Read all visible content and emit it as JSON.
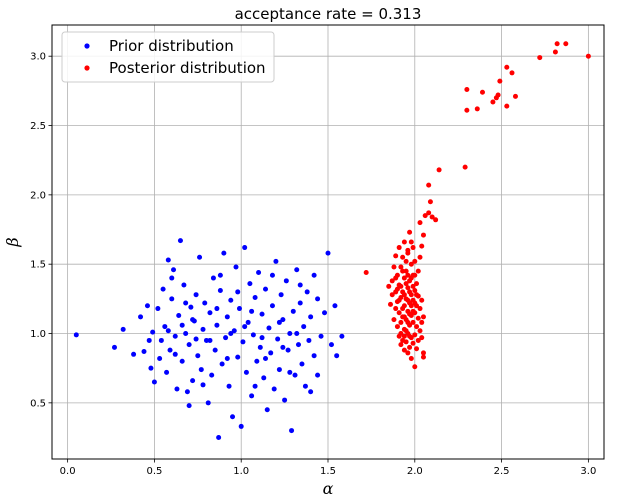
{
  "chart_data": {
    "type": "scatter",
    "title": "acceptance rate = 0.313",
    "xlabel": "α",
    "ylabel": "β",
    "xlim": [
      -0.09,
      3.09
    ],
    "ylim": [
      0.095,
      3.225
    ],
    "x_ticks": [
      0.0,
      0.5,
      1.0,
      1.5,
      2.0,
      2.5,
      3.0
    ],
    "y_ticks": [
      0.5,
      1.0,
      1.5,
      2.0,
      2.5,
      3.0
    ],
    "grid": true,
    "legend_position": "top-left",
    "series": [
      {
        "name": "Prior distribution",
        "color": "#0000ff",
        "marker": "dot",
        "points": [
          [
            0.05,
            0.99
          ],
          [
            0.27,
            0.9
          ],
          [
            0.32,
            1.03
          ],
          [
            0.38,
            0.85
          ],
          [
            0.42,
            1.12
          ],
          [
            0.44,
            0.87
          ],
          [
            0.46,
            1.2
          ],
          [
            0.47,
            0.95
          ],
          [
            0.49,
            1.01
          ],
          [
            0.5,
            0.65
          ],
          [
            0.52,
            1.18
          ],
          [
            0.53,
            0.82
          ],
          [
            0.55,
            1.32
          ],
          [
            0.56,
            1.05
          ],
          [
            0.57,
            0.72
          ],
          [
            0.58,
            1.53
          ],
          [
            0.59,
            0.88
          ],
          [
            0.6,
            1.25
          ],
          [
            0.61,
            1.46
          ],
          [
            0.62,
            0.98
          ],
          [
            0.63,
            0.6
          ],
          [
            0.64,
            1.13
          ],
          [
            0.65,
            1.67
          ],
          [
            0.66,
            0.8
          ],
          [
            0.67,
            1.35
          ],
          [
            0.68,
            1.0
          ],
          [
            0.69,
            0.58
          ],
          [
            0.7,
            0.92
          ],
          [
            0.71,
            1.19
          ],
          [
            0.72,
            0.66
          ],
          [
            0.73,
            1.09
          ],
          [
            0.74,
            1.28
          ],
          [
            0.75,
            0.84
          ],
          [
            0.76,
            1.55
          ],
          [
            0.77,
            0.74
          ],
          [
            0.78,
            1.03
          ],
          [
            0.79,
            1.22
          ],
          [
            0.8,
            0.95
          ],
          [
            0.81,
            0.5
          ],
          [
            0.82,
            1.15
          ],
          [
            0.83,
            0.7
          ],
          [
            0.84,
            1.4
          ],
          [
            0.85,
            0.88
          ],
          [
            0.86,
            1.06
          ],
          [
            0.87,
            0.25
          ],
          [
            0.88,
            1.31
          ],
          [
            0.89,
            0.78
          ],
          [
            0.9,
            1.58
          ],
          [
            0.91,
            0.97
          ],
          [
            0.92,
            1.12
          ],
          [
            0.93,
            0.62
          ],
          [
            0.94,
            1.24
          ],
          [
            0.95,
            0.4
          ],
          [
            0.96,
            1.02
          ],
          [
            0.97,
            1.48
          ],
          [
            0.98,
            0.83
          ],
          [
            0.99,
            1.18
          ],
          [
            1.0,
            0.33
          ],
          [
            1.01,
            0.94
          ],
          [
            1.02,
            1.62
          ],
          [
            1.03,
            0.72
          ],
          [
            1.04,
            1.08
          ],
          [
            1.05,
            1.36
          ],
          [
            1.06,
            0.55
          ],
          [
            1.07,
            0.99
          ],
          [
            1.08,
            1.26
          ],
          [
            1.09,
            0.8
          ],
          [
            1.1,
            1.44
          ],
          [
            1.11,
            0.9
          ],
          [
            1.12,
            1.14
          ],
          [
            1.13,
            0.68
          ],
          [
            1.14,
            1.32
          ],
          [
            1.15,
            0.45
          ],
          [
            1.16,
            1.04
          ],
          [
            1.17,
            0.86
          ],
          [
            1.18,
            1.2
          ],
          [
            1.19,
            0.6
          ],
          [
            1.2,
            1.52
          ],
          [
            1.21,
            0.96
          ],
          [
            1.22,
            0.74
          ],
          [
            1.23,
            1.28
          ],
          [
            1.24,
            1.1
          ],
          [
            1.25,
            0.52
          ],
          [
            1.26,
            1.38
          ],
          [
            1.27,
            0.88
          ],
          [
            1.28,
            1.0
          ],
          [
            1.29,
            0.3
          ],
          [
            1.3,
            1.16
          ],
          [
            1.31,
            0.7
          ],
          [
            1.32,
            1.46
          ],
          [
            1.33,
            0.92
          ],
          [
            1.34,
            1.22
          ],
          [
            1.35,
            0.78
          ],
          [
            1.36,
            1.05
          ],
          [
            1.37,
            0.62
          ],
          [
            1.38,
            1.3
          ],
          [
            1.39,
            0.95
          ],
          [
            1.4,
            1.12
          ],
          [
            1.42,
            0.84
          ],
          [
            1.44,
            1.25
          ],
          [
            1.46,
            0.98
          ],
          [
            1.48,
            1.15
          ],
          [
            1.5,
            1.58
          ],
          [
            1.52,
            0.92
          ],
          [
            1.55,
            0.84
          ],
          [
            0.62,
            0.85
          ],
          [
            0.72,
            1.1
          ],
          [
            0.82,
            0.95
          ],
          [
            0.92,
            0.82
          ],
          [
            1.02,
            1.05
          ],
          [
            1.12,
            0.97
          ],
          [
            1.22,
            1.08
          ],
          [
            1.32,
            1.0
          ],
          [
            0.68,
            1.22
          ],
          [
            0.78,
            0.63
          ],
          [
            0.88,
            1.42
          ],
          [
            0.98,
            1.3
          ],
          [
            1.08,
            0.62
          ],
          [
            1.18,
            1.42
          ],
          [
            1.28,
            0.72
          ],
          [
            0.58,
            1.02
          ],
          [
            0.66,
            1.06
          ],
          [
            0.74,
            0.96
          ],
          [
            0.86,
            1.18
          ],
          [
            0.94,
            1.0
          ],
          [
            1.06,
            1.16
          ],
          [
            1.14,
            0.82
          ],
          [
            1.24,
            0.9
          ],
          [
            1.34,
            1.35
          ],
          [
            1.44,
            0.7
          ],
          [
            0.48,
            0.75
          ],
          [
            0.54,
            0.95
          ],
          [
            1.58,
            0.98
          ],
          [
            1.54,
            1.2
          ],
          [
            1.42,
            1.42
          ],
          [
            1.4,
            0.58
          ],
          [
            0.6,
            1.4
          ],
          [
            0.7,
            0.48
          ]
        ]
      },
      {
        "name": "Posterior distribution",
        "color": "#ff0000",
        "marker": "dot",
        "points": [
          [
            3.0,
            3.0
          ],
          [
            2.87,
            3.09
          ],
          [
            2.82,
            3.09
          ],
          [
            2.81,
            3.03
          ],
          [
            2.72,
            2.99
          ],
          [
            2.58,
            2.71
          ],
          [
            2.56,
            2.88
          ],
          [
            2.53,
            2.92
          ],
          [
            2.53,
            2.64
          ],
          [
            2.49,
            2.82
          ],
          [
            2.48,
            2.72
          ],
          [
            2.47,
            2.7
          ],
          [
            2.45,
            2.67
          ],
          [
            2.39,
            2.74
          ],
          [
            2.36,
            2.62
          ],
          [
            2.3,
            2.76
          ],
          [
            2.3,
            2.61
          ],
          [
            2.29,
            2.2
          ],
          [
            2.14,
            2.18
          ],
          [
            2.12,
            1.82
          ],
          [
            2.1,
            1.84
          ],
          [
            2.09,
            1.95
          ],
          [
            2.08,
            1.87
          ],
          [
            2.08,
            2.07
          ],
          [
            2.06,
            1.85
          ],
          [
            2.05,
            1.71
          ],
          [
            2.04,
            1.63
          ],
          [
            2.03,
            1.8
          ],
          [
            2.03,
            1.55
          ],
          [
            1.72,
            1.44
          ],
          [
            1.85,
            1.34
          ],
          [
            1.86,
            1.21
          ],
          [
            1.87,
            1.28
          ],
          [
            1.87,
            1.38
          ],
          [
            1.88,
            1.1
          ],
          [
            1.88,
            1.48
          ],
          [
            1.89,
            1.18
          ],
          [
            1.89,
            1.3
          ],
          [
            1.89,
            1.56
          ],
          [
            1.9,
            1.05
          ],
          [
            1.9,
            1.23
          ],
          [
            1.9,
            1.42
          ],
          [
            1.91,
            0.98
          ],
          [
            1.91,
            1.15
          ],
          [
            1.91,
            1.35
          ],
          [
            1.91,
            1.62
          ],
          [
            1.92,
            0.92
          ],
          [
            1.92,
            1.08
          ],
          [
            1.92,
            1.26
          ],
          [
            1.92,
            1.48
          ],
          [
            1.93,
            0.95
          ],
          [
            1.93,
            1.12
          ],
          [
            1.93,
            1.3
          ],
          [
            1.93,
            1.55
          ],
          [
            1.94,
            0.88
          ],
          [
            1.94,
            1.03
          ],
          [
            1.94,
            1.2
          ],
          [
            1.94,
            1.4
          ],
          [
            1.94,
            1.66
          ],
          [
            1.95,
            0.94
          ],
          [
            1.95,
            1.1
          ],
          [
            1.95,
            1.25
          ],
          [
            1.95,
            1.45
          ],
          [
            1.96,
            0.86
          ],
          [
            1.96,
            1.0
          ],
          [
            1.96,
            1.16
          ],
          [
            1.96,
            1.33
          ],
          [
            1.96,
            1.58
          ],
          [
            1.97,
            0.9
          ],
          [
            1.97,
            1.06
          ],
          [
            1.97,
            1.22
          ],
          [
            1.97,
            1.38
          ],
          [
            1.97,
            1.73
          ],
          [
            1.98,
            0.82
          ],
          [
            1.98,
            0.97
          ],
          [
            1.98,
            1.13
          ],
          [
            1.98,
            1.28
          ],
          [
            1.98,
            1.5
          ],
          [
            1.99,
            0.93
          ],
          [
            1.99,
            1.08
          ],
          [
            1.99,
            1.24
          ],
          [
            1.99,
            1.42
          ],
          [
            1.99,
            1.62
          ],
          [
            2.0,
            0.76
          ],
          [
            2.0,
            0.99
          ],
          [
            2.0,
            1.15
          ],
          [
            2.0,
            1.31
          ],
          [
            2.0,
            1.52
          ],
          [
            2.01,
            0.89
          ],
          [
            2.01,
            1.05
          ],
          [
            2.01,
            1.2
          ],
          [
            2.01,
            1.36
          ],
          [
            2.02,
            0.95
          ],
          [
            2.02,
            1.11
          ],
          [
            2.02,
            1.27
          ],
          [
            2.02,
            1.45
          ],
          [
            2.03,
            1.02
          ],
          [
            2.03,
            1.18
          ],
          [
            2.04,
            0.97
          ],
          [
            2.04,
            1.08
          ],
          [
            2.04,
            1.24
          ],
          [
            2.05,
            0.86
          ],
          [
            2.05,
            0.83
          ],
          [
            2.05,
            1.12
          ],
          [
            1.93,
            1.18
          ],
          [
            1.95,
            1.36
          ],
          [
            1.97,
            1.14
          ],
          [
            1.99,
            1.34
          ],
          [
            1.94,
            1.28
          ],
          [
            1.96,
            1.24
          ],
          [
            1.98,
            1.2
          ],
          [
            1.92,
            1.34
          ],
          [
            1.96,
            1.42
          ],
          [
            1.98,
            1.4
          ],
          [
            1.94,
            1.12
          ],
          [
            1.96,
            1.08
          ],
          [
            2.0,
            1.22
          ],
          [
            1.91,
            1.24
          ],
          [
            1.95,
            1.52
          ],
          [
            1.93,
            1.45
          ],
          [
            1.97,
            1.3
          ],
          [
            1.99,
            1.16
          ],
          [
            2.01,
            1.28
          ],
          [
            1.95,
            1.02
          ],
          [
            1.97,
            0.98
          ],
          [
            1.92,
            1.0
          ],
          [
            1.9,
            1.32
          ],
          [
            1.89,
            1.4
          ],
          [
            1.96,
            1.6
          ],
          [
            1.98,
            1.66
          ],
          [
            2.0,
            1.42
          ],
          [
            1.94,
            0.98
          ]
        ]
      }
    ]
  }
}
